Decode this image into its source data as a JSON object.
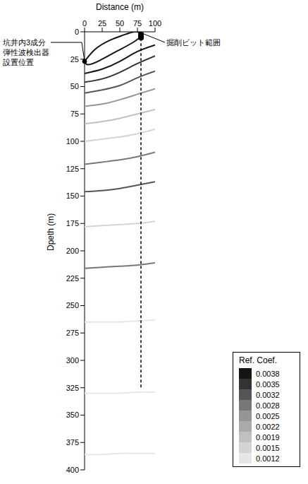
{
  "chart_data": {
    "type": "line",
    "x_label": "Distance (m)",
    "y_label": "Dpeth (m)",
    "xlim": [
      0,
      100
    ],
    "xticks": [
      0,
      25,
      50,
      75,
      100
    ],
    "ylim": [
      0,
      400
    ],
    "yticks": [
      0,
      25,
      50,
      75,
      100,
      125,
      150,
      175,
      200,
      225,
      250,
      275,
      300,
      325,
      350,
      375,
      400
    ],
    "reflectors": [
      {
        "x": [
          0,
          15,
          35,
          55,
          72,
          80,
          68,
          45,
          22,
          5,
          0
        ],
        "y": [
          27,
          16,
          8,
          3,
          0,
          3,
          10,
          18,
          26,
          30,
          27
        ],
        "coef": 0.0038
      },
      {
        "x": [
          0,
          25,
          50,
          75,
          100
        ],
        "y": [
          38,
          34,
          27,
          18,
          12
        ],
        "coef": 0.0038
      },
      {
        "x": [
          0,
          25,
          50,
          75,
          100
        ],
        "y": [
          46,
          43,
          37,
          29,
          22
        ],
        "coef": 0.0035
      },
      {
        "x": [
          0,
          25,
          50,
          75,
          100
        ],
        "y": [
          56,
          53,
          49,
          42,
          36
        ],
        "coef": 0.0032
      },
      {
        "x": [
          0,
          25,
          50,
          75,
          100
        ],
        "y": [
          68,
          66,
          62,
          57,
          52
        ],
        "coef": 0.0025
      },
      {
        "x": [
          0,
          25,
          50,
          75,
          100
        ],
        "y": [
          84,
          82,
          79,
          75,
          71
        ],
        "coef": 0.0019
      },
      {
        "x": [
          0,
          25,
          50,
          75,
          100
        ],
        "y": [
          100,
          98,
          96,
          93,
          89
        ],
        "coef": 0.0015
      },
      {
        "x": [
          0,
          25,
          50,
          75,
          100
        ],
        "y": [
          121,
          119,
          117,
          114,
          110
        ],
        "coef": 0.0028
      },
      {
        "x": [
          0,
          25,
          50,
          75,
          100
        ],
        "y": [
          146,
          145,
          143,
          140,
          137
        ],
        "coef": 0.0032
      },
      {
        "x": [
          0,
          25,
          50,
          75,
          100
        ],
        "y": [
          178,
          177,
          176,
          175,
          173
        ],
        "coef": 0.0015
      },
      {
        "x": [
          0,
          25,
          50,
          75,
          100
        ],
        "y": [
          216,
          215,
          214,
          213,
          211
        ],
        "coef": 0.0028
      },
      {
        "x": [
          0,
          25,
          50,
          75,
          100
        ],
        "y": [
          265,
          265,
          265,
          264,
          263
        ],
        "coef": 0.0012
      },
      {
        "x": [
          0,
          25,
          50,
          75,
          100
        ],
        "y": [
          330,
          330,
          330,
          329,
          329
        ],
        "coef": 0.0012
      },
      {
        "x": [
          0,
          25,
          50,
          75,
          100
        ],
        "y": [
          386,
          386,
          385,
          385,
          385
        ],
        "coef": 0.0012
      }
    ],
    "bit_path": {
      "x": [
        80,
        80
      ],
      "y": [
        6,
        325
      ]
    },
    "annotations": [
      {
        "text": "掘削ビット範囲",
        "x": 80,
        "y": 0
      },
      {
        "text": "坑井内3成分弾性波検出器設置位置",
        "x": 0,
        "y": 27
      }
    ],
    "colorbar": {
      "label": "Ref. Coef.",
      "ticks": [
        0.0038,
        0.0035,
        0.0032,
        0.0028,
        0.0025,
        0.0022,
        0.0019,
        0.0015,
        0.0012
      ],
      "colors": [
        "#141414",
        "#333333",
        "#555555",
        "#777777",
        "#959595",
        "#aaaaaa",
        "#c0c0c0",
        "#d4d4d4",
        "#e6e6e6"
      ]
    }
  }
}
